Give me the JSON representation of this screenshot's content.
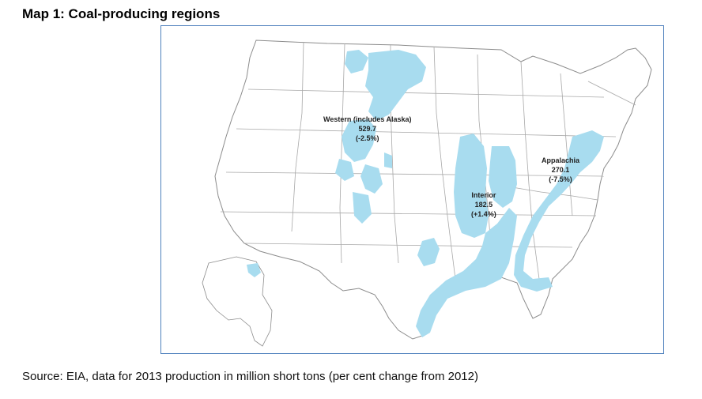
{
  "title": "Map 1: Coal-producing regions",
  "colors": {
    "coal_region_fill": "#a8dcef",
    "state_border": "#9a9a9a",
    "frame_border": "#4f81bd"
  },
  "regions": [
    {
      "id": "western",
      "name": "Western (includes Alaska)",
      "value": "529.7",
      "change": "(-2.5%)"
    },
    {
      "id": "interior",
      "name": "Interior",
      "value": "182.5",
      "change": "(+1.4%)"
    },
    {
      "id": "appalachia",
      "name": "Appalachia",
      "value": "270.1",
      "change": "(-7.5%)"
    }
  ],
  "source": "Source: EIA, data for 2013 production in million short tons (per cent change from 2012)"
}
